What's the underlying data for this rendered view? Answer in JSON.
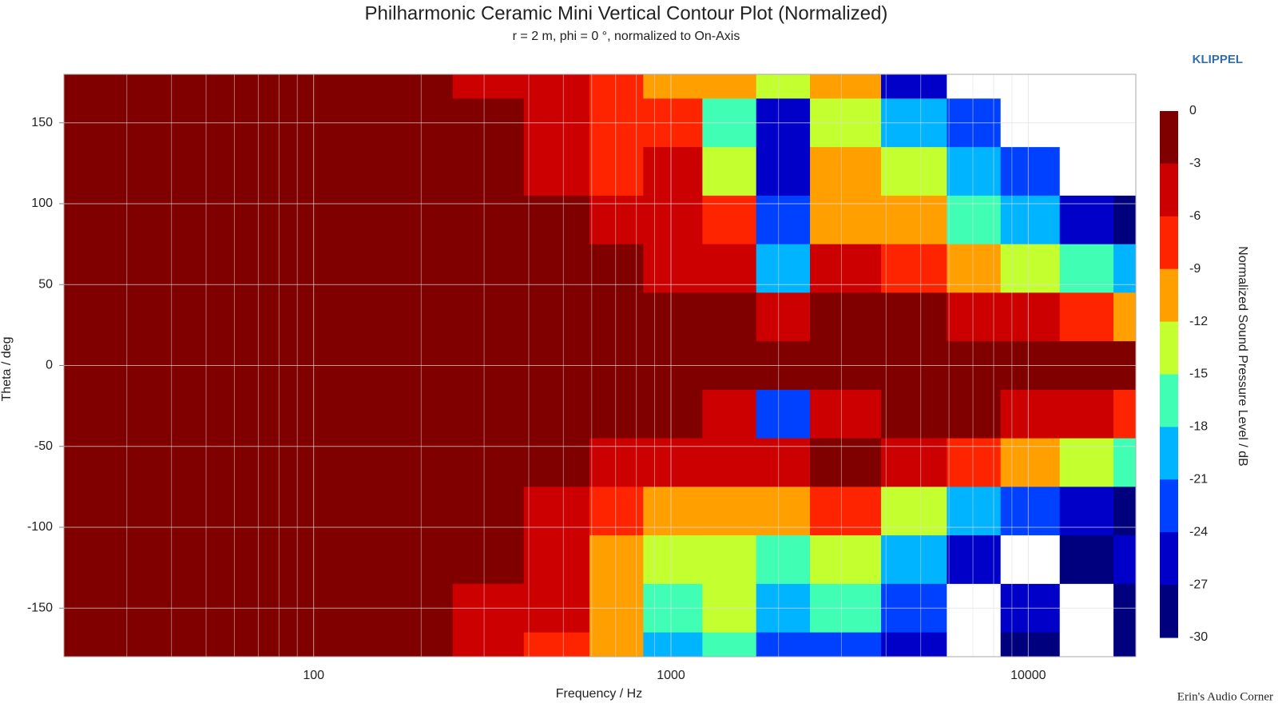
{
  "chart_data": {
    "type": "contour",
    "title": "Philharmonic Ceramic Mini Vertical Contour Plot (Normalized)",
    "subtitle": "r = 2 m, phi = 0 °, normalized to On-Axis",
    "xlabel": "Frequency / Hz",
    "ylabel": "Theta / deg",
    "brand": "KLIPPEL",
    "credit": "Erin's Audio Corner",
    "xscale": "log",
    "xlim": [
      20,
      20000
    ],
    "ylim": [
      -180,
      180
    ],
    "xticks": [
      100,
      1000,
      10000
    ],
    "x_minor_ticks": [
      20,
      30,
      40,
      50,
      60,
      70,
      80,
      90,
      200,
      300,
      400,
      500,
      600,
      700,
      800,
      900,
      2000,
      3000,
      4000,
      5000,
      6000,
      7000,
      8000,
      9000,
      20000
    ],
    "yticks": [
      150,
      100,
      50,
      0,
      -50,
      -100,
      -150
    ],
    "grid": true,
    "x": [
      20,
      50,
      100,
      200,
      300,
      500,
      700,
      1000,
      1500,
      2000,
      3000,
      5000,
      7000,
      10000,
      15000,
      20000
    ],
    "y": [
      180,
      150,
      120,
      90,
      60,
      30,
      0,
      -30,
      -60,
      -90,
      -120,
      -150,
      -180
    ],
    "z": [
      [
        0,
        0,
        0,
        0,
        -4,
        -6,
        -9,
        -12,
        -10,
        -15,
        -12,
        -27,
        -31,
        -31,
        -31,
        -31
      ],
      [
        0,
        0,
        0,
        0,
        -3,
        -5,
        -8,
        -9,
        -16,
        -25,
        -14,
        -20,
        -24,
        -31,
        -31,
        -31
      ],
      [
        0,
        0,
        0,
        0,
        -3,
        -4,
        -8,
        -6,
        -13,
        -27,
        -12,
        -15,
        -21,
        -24,
        -31,
        -31
      ],
      [
        0,
        0,
        0,
        0,
        0,
        -3,
        -5,
        -6,
        -9,
        -24,
        -10,
        -12,
        -16,
        -21,
        -26,
        -28
      ],
      [
        0,
        0,
        0,
        0,
        0,
        -2,
        -3,
        -5,
        -6,
        -20,
        -6,
        -8,
        -10,
        -13,
        -17,
        -20
      ],
      [
        0,
        0,
        0,
        0,
        0,
        0,
        0,
        -2,
        -3,
        -6,
        -2,
        -3,
        -4,
        -5,
        -8,
        -10
      ],
      [
        0,
        0,
        0,
        0,
        0,
        0,
        0,
        0,
        0,
        0,
        0,
        0,
        0,
        0,
        0,
        -2
      ],
      [
        0,
        0,
        0,
        0,
        0,
        0,
        0,
        -2,
        -5,
        -22,
        -5,
        -3,
        -3,
        -5,
        -6,
        -9
      ],
      [
        0,
        0,
        0,
        0,
        0,
        -2,
        -4,
        -6,
        -6,
        -5,
        -2,
        -5,
        -9,
        -12,
        -15,
        -18
      ],
      [
        0,
        0,
        0,
        0,
        -2,
        -4,
        -8,
        -10,
        -12,
        -10,
        -7,
        -15,
        -20,
        -24,
        -26,
        -28
      ],
      [
        0,
        0,
        0,
        0,
        -3,
        -6,
        -10,
        -13,
        -15,
        -16,
        -14,
        -21,
        -27,
        -31,
        -28,
        -27
      ],
      [
        0,
        0,
        0,
        0,
        -4,
        -6,
        -12,
        -16,
        -15,
        -20,
        -18,
        -24,
        -31,
        -27,
        -31,
        -29
      ],
      [
        0,
        0,
        0,
        0,
        -4,
        -7,
        -12,
        -20,
        -16,
        -24,
        -22,
        -27,
        -31,
        -29,
        -31,
        -29
      ]
    ],
    "colorbar": {
      "label": "Normalized Sound Pressure Level / dB",
      "levels": [
        0,
        -3,
        -6,
        -9,
        -12,
        -15,
        -18,
        -21,
        -24,
        -27,
        -30
      ],
      "colors": [
        "#800000",
        "#cc0000",
        "#ff2400",
        "#ffa000",
        "#c4ff30",
        "#40ffb4",
        "#00b4ff",
        "#0040ff",
        "#0000c8",
        "#00007e"
      ]
    }
  }
}
